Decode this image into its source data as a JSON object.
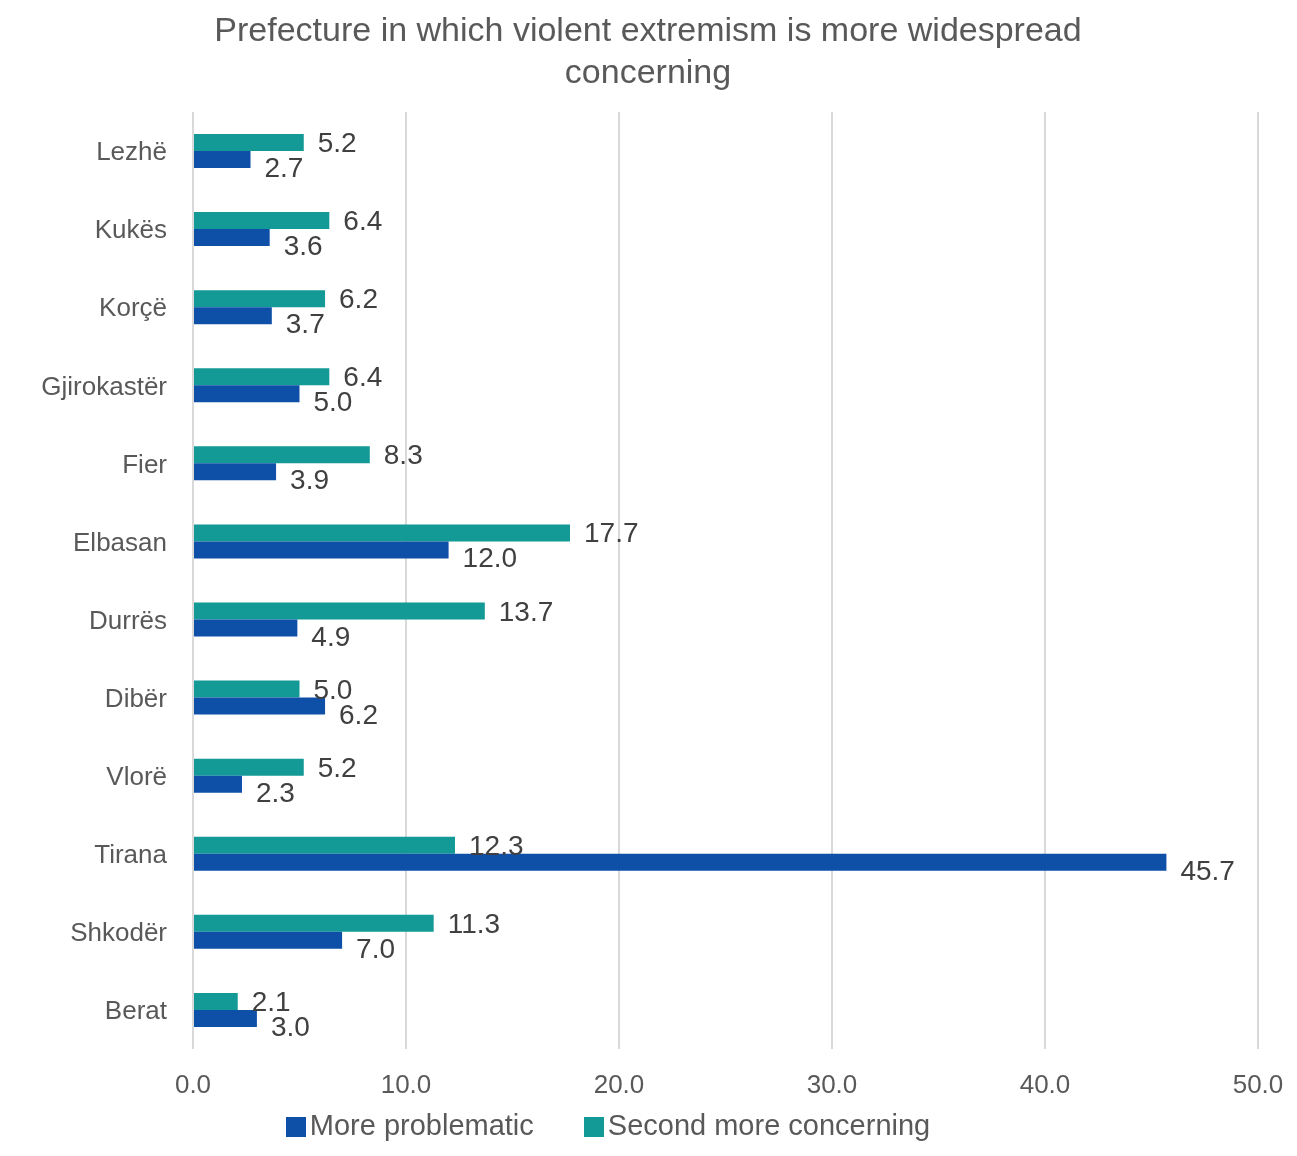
{
  "chart_data": {
    "type": "bar",
    "orientation": "horizontal",
    "title": "Prefecture in which violent extremism is more widespread concerning",
    "categories": [
      "Lezhë",
      "Kukës",
      "Korçë",
      "Gjirokastër",
      "Fier",
      "Elbasan",
      "Durrës",
      "Dibër",
      "Vlorë",
      "Tirana",
      "Shkodër",
      "Berat"
    ],
    "series": [
      {
        "name": "Second more concerning",
        "color": "#139a96",
        "values": [
          5.2,
          6.4,
          6.2,
          6.4,
          8.3,
          17.7,
          13.7,
          5.0,
          5.2,
          12.3,
          11.3,
          2.1
        ],
        "value_labels": [
          "5.2",
          "6.4",
          "6.2",
          "6.4",
          "8.3",
          "17.7",
          "13.7",
          "5.0",
          "5.2",
          "12.3",
          "11.3",
          "2.1"
        ]
      },
      {
        "name": "More problematic",
        "color": "#0e4fa8",
        "values": [
          2.7,
          3.6,
          3.7,
          5.0,
          3.9,
          12.0,
          4.9,
          6.2,
          2.3,
          45.7,
          7.0,
          3.0
        ],
        "value_labels": [
          "2.7",
          "3.6",
          "3.7",
          "5.0",
          "3.9",
          "12.0",
          "4.9",
          "6.2",
          "2.3",
          "45.7",
          "7.0",
          "3.0"
        ]
      }
    ],
    "xlim": [
      0,
      50
    ],
    "xticks": [
      {
        "value": 0,
        "label": "0.0"
      },
      {
        "value": 10,
        "label": "10.0"
      },
      {
        "value": 20,
        "label": "20.0"
      },
      {
        "value": 30,
        "label": "30.0"
      },
      {
        "value": 40,
        "label": "40.0"
      },
      {
        "value": 50,
        "label": "50.0"
      }
    ],
    "grid": "x",
    "legend": "bottom"
  }
}
